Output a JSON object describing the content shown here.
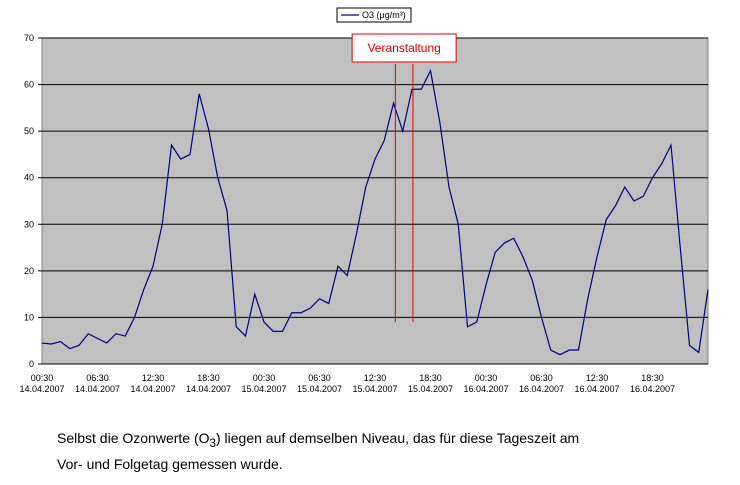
{
  "chart_data": {
    "type": "line",
    "categories": [
      "00:30",
      null,
      null,
      null,
      null,
      null,
      "06:30",
      null,
      null,
      null,
      null,
      null,
      "12:30",
      null,
      null,
      null,
      null,
      null,
      "18:30",
      null,
      null,
      null,
      null,
      null,
      "00:30",
      null,
      null,
      null,
      null,
      null,
      "06:30",
      null,
      null,
      null,
      null,
      null,
      "12:30",
      null,
      null,
      null,
      null,
      null,
      "18:30",
      null,
      null,
      null,
      null,
      null,
      "00:30",
      null,
      null,
      null,
      null,
      null,
      "06:30",
      null,
      null,
      null,
      null,
      null,
      "12:30",
      null,
      null,
      null,
      null,
      null,
      "18:30",
      null,
      null,
      null,
      null,
      null,
      null
    ],
    "category_dates": [
      "14.04.2007",
      null,
      null,
      null,
      null,
      null,
      "14.04.2007",
      null,
      null,
      null,
      null,
      null,
      "14.04.2007",
      null,
      null,
      null,
      null,
      null,
      "14.04.2007",
      null,
      null,
      null,
      null,
      null,
      "15.04.2007",
      null,
      null,
      null,
      null,
      null,
      "15.04.2007",
      null,
      null,
      null,
      null,
      null,
      "15.04.2007",
      null,
      null,
      null,
      null,
      null,
      "15.04.2007",
      null,
      null,
      null,
      null,
      null,
      "16.04.2007",
      null,
      null,
      null,
      null,
      null,
      "16.04.2007",
      null,
      null,
      null,
      null,
      null,
      "16.04.2007",
      null,
      null,
      null,
      null,
      null,
      "16.04.2007",
      null,
      null,
      null,
      null,
      null,
      null
    ],
    "series": [
      {
        "name": "O3 (µg/m³)",
        "color": "#000080",
        "values": [
          4.5,
          4.3,
          4.8,
          3.3,
          4,
          6.5,
          5.5,
          4.5,
          6.5,
          6,
          10,
          16,
          21,
          30,
          47,
          44,
          45,
          58,
          50.5,
          40,
          33,
          8,
          6,
          15,
          9,
          7,
          7,
          11,
          11,
          12,
          14,
          13,
          21,
          19,
          28,
          38,
          44,
          48,
          56,
          50,
          59,
          59,
          63,
          52,
          38,
          30,
          8,
          9,
          17,
          24,
          26,
          27,
          23,
          18,
          10,
          3,
          2,
          3,
          3,
          14,
          23,
          31,
          34,
          38,
          35,
          36,
          40,
          43,
          47,
          25,
          4,
          2.5,
          16
        ]
      }
    ],
    "ylim": [
      0,
      70
    ],
    "yticks": [
      0,
      10,
      20,
      30,
      40,
      50,
      60,
      70
    ],
    "grid": true,
    "annotation": {
      "label": "Veranstaltung",
      "start_index": 38.2,
      "end_index": 40.1,
      "color": "#e00000"
    },
    "legend": "top",
    "caption": {
      "before": "Selbst die Ozonwerte (O",
      "sub": "3",
      "after": ") liegen auf demselben Niveau, das für diese Tageszeit am",
      "line2": "Vor- und Folgetag gemessen wurde."
    }
  }
}
